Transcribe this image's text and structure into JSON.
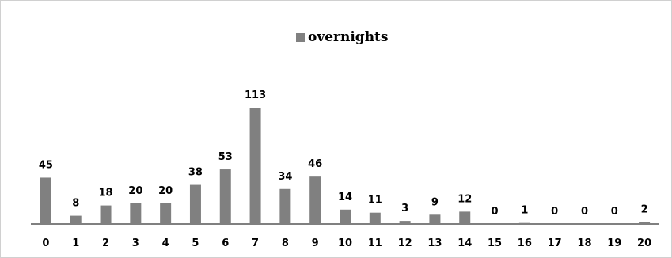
{
  "colors": {
    "bar": "#808080",
    "axis": "#000000"
  },
  "chart_data": {
    "type": "bar",
    "categories": [
      "0",
      "1",
      "2",
      "3",
      "4",
      "5",
      "6",
      "7",
      "8",
      "9",
      "10",
      "11",
      "12",
      "13",
      "14",
      "15",
      "16",
      "17",
      "18",
      "19",
      "20"
    ],
    "series": [
      {
        "name": "overnights",
        "values": [
          45,
          8,
          18,
          20,
          20,
          38,
          53,
          113,
          34,
          46,
          14,
          11,
          3,
          9,
          12,
          0,
          1,
          0,
          0,
          0,
          2
        ]
      }
    ],
    "data_labels": true,
    "title": "",
    "xlabel": "",
    "ylabel": "",
    "ylim": [
      0,
      120
    ],
    "grid": false,
    "legend": "top-center"
  }
}
